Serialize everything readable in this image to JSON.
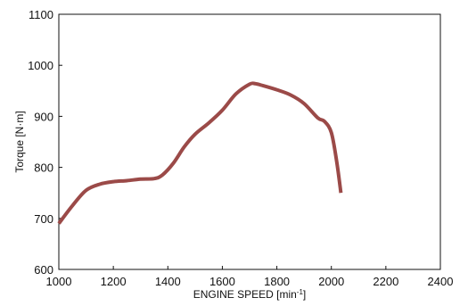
{
  "chart_data": {
    "type": "line",
    "title": "",
    "xlabel_main": "ENGINE SPEED [min",
    "xlabel_sup": "-1",
    "xlabel_end": "]",
    "ylabel": "Torque [N·m]",
    "xlim": [
      1000,
      2400
    ],
    "ylim": [
      600,
      1100
    ],
    "xticks": [
      1000,
      1200,
      1400,
      1600,
      1800,
      2000,
      2200,
      2400
    ],
    "yticks": [
      600,
      700,
      800,
      900,
      1000,
      1100
    ],
    "grid": false,
    "legend": "none",
    "series": [
      {
        "color": "#9B4A48",
        "x": [
          1000,
          1050,
          1100,
          1150,
          1200,
          1250,
          1300,
          1350,
          1380,
          1420,
          1460,
          1500,
          1550,
          1600,
          1650,
          1700,
          1720,
          1750,
          1800,
          1850,
          1900,
          1950,
          1975,
          2000,
          2020,
          2035
        ],
        "y": [
          690,
          725,
          755,
          767,
          772,
          774,
          777,
          778,
          785,
          808,
          840,
          865,
          887,
          912,
          944,
          963,
          964,
          960,
          952,
          942,
          925,
          897,
          890,
          868,
          810,
          750
        ]
      }
    ]
  }
}
